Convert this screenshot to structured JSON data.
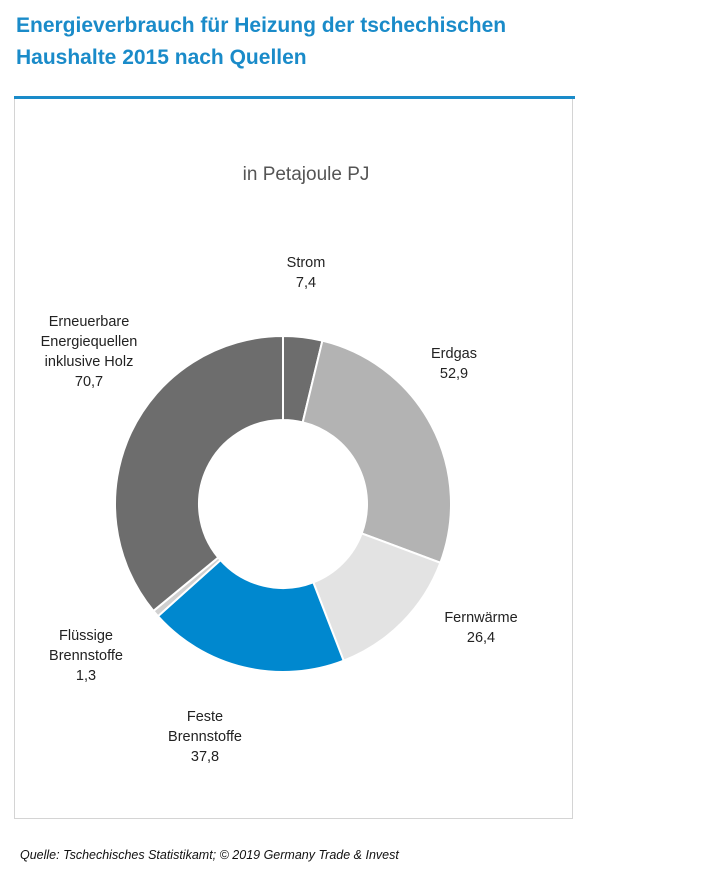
{
  "header": {
    "title_line1": "Energieverbrauch für Heizung der tschechischen",
    "title_line2": "Haushalte 2015 nach  Quellen"
  },
  "footer": {
    "source": "Quelle: Tschechisches Statistikamt; © 2019  Germany Trade & Invest"
  },
  "chart_data": {
    "type": "pie",
    "variant": "donut",
    "subtitle": "in Petajoule PJ",
    "unit": "PJ",
    "slices": [
      {
        "label_lines": [
          "Strom"
        ],
        "value": 7.4,
        "value_text": "7,4",
        "color": "#6d6d6d"
      },
      {
        "label_lines": [
          "Erdgas"
        ],
        "value": 52.9,
        "value_text": "52,9",
        "color": "#b3b3b3"
      },
      {
        "label_lines": [
          "Fernwärme"
        ],
        "value": 26.4,
        "value_text": "26,4",
        "color": "#e3e3e3"
      },
      {
        "label_lines": [
          "Feste",
          "Brennstoffe"
        ],
        "value": 37.8,
        "value_text": "37,8",
        "color": "#0088cf"
      },
      {
        "label_lines": [
          "Flüssige",
          "Brennstoffe"
        ],
        "value": 1.3,
        "value_text": "1,3",
        "color": "#d0d0d0"
      },
      {
        "label_lines": [
          "Erneuerbare",
          "Energiequellen",
          "inklusive Holz"
        ],
        "value": 70.7,
        "value_text": "70,7",
        "color": "#6d6d6d"
      }
    ],
    "start_angle_deg": 0,
    "direction": "clockwise",
    "legend": "none"
  }
}
